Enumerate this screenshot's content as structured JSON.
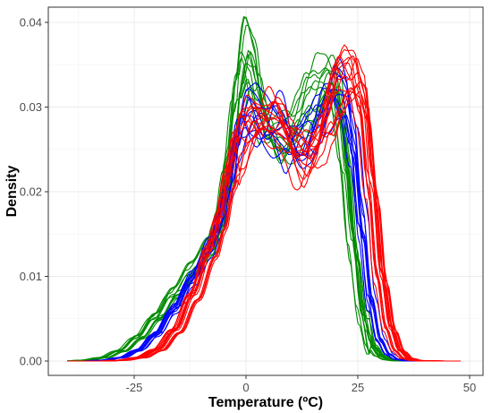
{
  "chart_data": {
    "type": "line",
    "title": "",
    "xlabel": "Temperature (ºC)",
    "ylabel": "Density",
    "xlim": [
      -40,
      50
    ],
    "ylim": [
      0,
      0.04
    ],
    "x_ticks": [
      -25,
      0,
      25,
      50
    ],
    "x_tick_labels": [
      "-25",
      "0",
      "25",
      "50"
    ],
    "y_ticks": [
      0,
      0.01,
      0.02,
      0.03,
      0.04
    ],
    "y_tick_labels": [
      "0.00",
      "0.01",
      "0.02",
      "0.03",
      "0.04"
    ],
    "grid": true,
    "legend": "none",
    "x_grid": [
      -40,
      -36,
      -32,
      -28,
      -24,
      -20,
      -16,
      -12,
      -8,
      -6,
      -4,
      -2,
      0,
      2,
      4,
      6,
      8,
      10,
      12,
      14,
      16,
      18,
      20,
      22,
      24,
      26,
      28,
      30,
      32,
      34,
      36,
      38,
      40,
      44,
      48
    ],
    "groups": [
      {
        "color": "#008B00",
        "count": 12,
        "template": [
          0,
          0.0001,
          0.0004,
          0.0012,
          0.0028,
          0.0052,
          0.008,
          0.0108,
          0.0135,
          0.0165,
          0.0225,
          0.031,
          0.036,
          0.034,
          0.029,
          0.0265,
          0.026,
          0.0265,
          0.028,
          0.0305,
          0.0325,
          0.0335,
          0.0315,
          0.024,
          0.0135,
          0.0055,
          0.0018,
          0.0006,
          0.00015,
          3e-05,
          0,
          0,
          0,
          0,
          0
        ]
      },
      {
        "color": "#0000FF",
        "count": 10,
        "template": [
          0,
          0,
          0.0001,
          0.0004,
          0.0013,
          0.0032,
          0.0062,
          0.0098,
          0.0135,
          0.0162,
          0.0205,
          0.0262,
          0.0292,
          0.0292,
          0.0282,
          0.0278,
          0.0275,
          0.0262,
          0.0252,
          0.026,
          0.0282,
          0.0305,
          0.0322,
          0.0312,
          0.0262,
          0.016,
          0.0072,
          0.0025,
          0.0008,
          0.0002,
          4e-05,
          0,
          0,
          0,
          0
        ]
      },
      {
        "color": "#FF0000",
        "count": 14,
        "template": [
          0,
          0,
          0,
          0.0001,
          0.0004,
          0.0013,
          0.0035,
          0.0075,
          0.0128,
          0.0162,
          0.0212,
          0.0255,
          0.0272,
          0.0285,
          0.0282,
          0.0278,
          0.0272,
          0.0255,
          0.0242,
          0.0238,
          0.0252,
          0.0282,
          0.0312,
          0.0332,
          0.0338,
          0.0302,
          0.0202,
          0.0098,
          0.0038,
          0.0012,
          0.0003,
          6e-05,
          1e-05,
          0,
          0
        ]
      }
    ]
  }
}
